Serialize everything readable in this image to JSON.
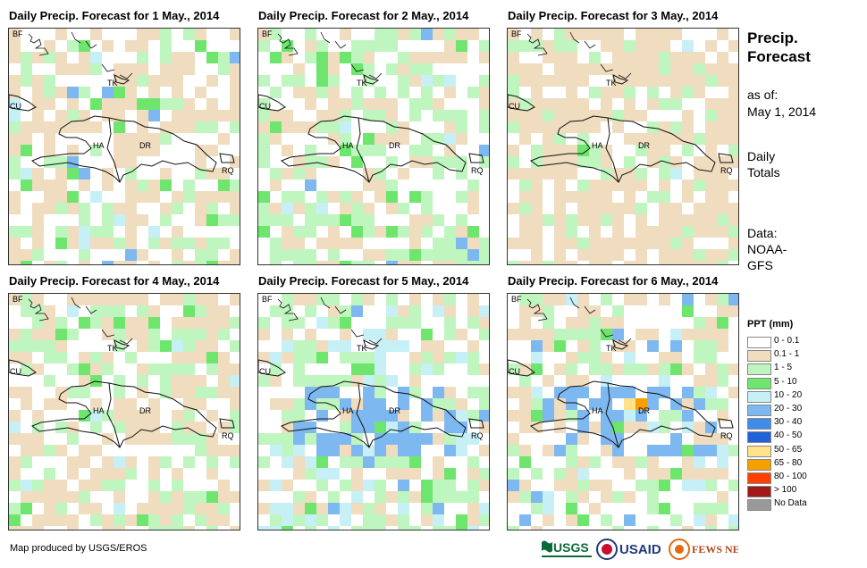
{
  "panels": [
    {
      "title": "Daily Precip. Forecast for 1 May., 2014",
      "labels": {
        "bf": "BF",
        "cu": "CU",
        "tk": "TK",
        "ha": "HA",
        "dr": "DR",
        "rq": "RQ"
      }
    },
    {
      "title": "Daily Precip. Forecast for 2 May., 2014",
      "labels": {
        "bf": "BF",
        "cu": "CU",
        "tk": "TK",
        "ha": "HA",
        "dr": "DR",
        "rq": "RQ"
      }
    },
    {
      "title": "Daily Precip. Forecast for 3 May., 2014",
      "labels": {
        "bf": "BF",
        "cu": "CU",
        "tk": "TK",
        "ha": "HA",
        "dr": "DR",
        "rq": "RQ"
      }
    },
    {
      "title": "Daily Precip. Forecast for 4 May., 2014",
      "labels": {
        "bf": "BF",
        "cu": "CU",
        "tk": "TK",
        "ha": "HA",
        "dr": "DR",
        "rq": "RQ"
      }
    },
    {
      "title": "Daily Precip. Forecast for 5 May., 2014",
      "labels": {
        "bf": "BF",
        "cu": "CU",
        "tk": "TK",
        "ha": "HA",
        "dr": "DR",
        "rq": "RQ"
      }
    },
    {
      "title": "Daily Precip. Forecast for 6 May., 2014",
      "labels": {
        "bf": "BF",
        "cu": "CU",
        "tk": "TK",
        "ha": "HA",
        "dr": "DR",
        "rq": "RQ"
      }
    }
  ],
  "side": {
    "title_line1": "Precip.",
    "title_line2": "Forecast",
    "asof_label": "as of:",
    "asof_date": "May 1, 2014",
    "totals_line1": "Daily",
    "totals_line2": "Totals",
    "data_label": "Data:",
    "data_line1": "NOAA-",
    "data_line2": "GFS"
  },
  "legend": {
    "title": "PPT (mm)",
    "items": [
      {
        "label": "0 - 0.1",
        "color": "#ffffff"
      },
      {
        "label": "0.1 - 1",
        "color": "#f0dcbe"
      },
      {
        "label": "1 - 5",
        "color": "#bff5bf"
      },
      {
        "label": "5 - 10",
        "color": "#6ee66e"
      },
      {
        "label": "10 - 20",
        "color": "#c6f0f5"
      },
      {
        "label": "20 - 30",
        "color": "#7eb8f0"
      },
      {
        "label": "30 - 40",
        "color": "#3f8cea"
      },
      {
        "label": "40 - 50",
        "color": "#1f63d6"
      },
      {
        "label": "50 - 65",
        "color": "#ffe38a"
      },
      {
        "label": "65 - 80",
        "color": "#f5a000"
      },
      {
        "label": "80 - 100",
        "color": "#ff4000"
      },
      {
        "label": "> 100",
        "color": "#a01818"
      },
      {
        "label": "No Data",
        "color": "#999999"
      }
    ]
  },
  "footer": {
    "credit": "Map produced by USGS/EROS"
  },
  "logos": {
    "usgs": "USGS",
    "usaid": "USAID",
    "fewsnet": "FEWS NET"
  }
}
